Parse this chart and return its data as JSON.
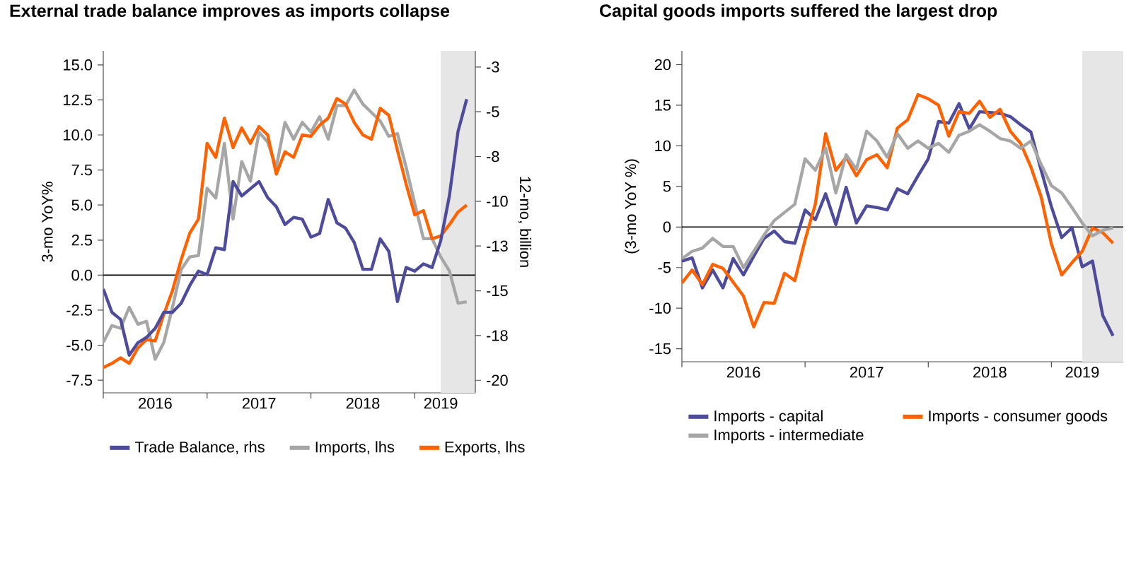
{
  "chart_data": [
    {
      "type": "line",
      "title": "External trade balance improves as imports collapse",
      "ylabel": "3-mo YoY%",
      "y2label": "12-mo, billion",
      "legend": "bottom",
      "x": [
        "2016-01",
        "2016-02",
        "2016-03",
        "2016-04",
        "2016-05",
        "2016-06",
        "2016-07",
        "2016-08",
        "2016-09",
        "2016-10",
        "2016-11",
        "2016-12",
        "2017-01",
        "2017-02",
        "2017-03",
        "2017-04",
        "2017-05",
        "2017-06",
        "2017-07",
        "2017-08",
        "2017-09",
        "2017-10",
        "2017-11",
        "2017-12",
        "2018-01",
        "2018-02",
        "2018-03",
        "2018-04",
        "2018-05",
        "2018-06",
        "2018-07",
        "2018-08",
        "2018-09",
        "2018-10",
        "2018-11",
        "2018-12",
        "2019-01",
        "2019-02",
        "2019-03",
        "2019-04",
        "2019-05",
        "2019-06",
        "2019-07"
      ],
      "series": [
        {
          "name": "Trade Balance, rhs",
          "color": "#4e4b9b",
          "axis": "y2",
          "values": [
            -14.9,
            -16.2,
            -16.6,
            -18.6,
            -17.9,
            -17.6,
            -17.1,
            -16.2,
            -16.2,
            -15.7,
            -14.7,
            -13.9,
            -14.1,
            -12.6,
            -12.7,
            -8.9,
            -9.7,
            -9.3,
            -8.9,
            -9.8,
            -10.3,
            -11.3,
            -10.9,
            -11.0,
            -12.0,
            -11.8,
            -9.9,
            -11.2,
            -11.5,
            -12.3,
            -13.8,
            -13.8,
            -12.1,
            -12.8,
            -15.6,
            -13.7,
            -13.9,
            -13.5,
            -13.7,
            -12.2,
            -9.7,
            -6.1,
            -4.3
          ]
        },
        {
          "name": "Imports, lhs",
          "color": "#a6a6a6",
          "values": [
            -4.8,
            -3.6,
            -3.8,
            -2.3,
            -3.5,
            -3.3,
            -6.0,
            -4.8,
            -2.3,
            0.4,
            1.3,
            1.4,
            6.2,
            5.5,
            9.4,
            4.0,
            8.1,
            6.7,
            10.2,
            9.5,
            7.7,
            10.9,
            9.7,
            10.9,
            10.2,
            11.3,
            9.7,
            12.1,
            12.1,
            13.2,
            12.2,
            11.6,
            11.0,
            9.9,
            10.1,
            7.7,
            5.1,
            2.6,
            2.6,
            1.3,
            0.3,
            -2.0,
            -1.9
          ]
        },
        {
          "name": "Exports, lhs",
          "color": "#ff6200",
          "values": [
            -6.6,
            -6.3,
            -5.9,
            -6.3,
            -5.2,
            -4.6,
            -4.7,
            -2.8,
            -1.1,
            1.1,
            3.0,
            4.0,
            9.4,
            8.4,
            11.2,
            9.1,
            10.5,
            9.4,
            10.6,
            10.0,
            7.2,
            8.8,
            8.4,
            10.0,
            9.9,
            10.7,
            11.2,
            12.6,
            12.2,
            10.9,
            10.0,
            9.7,
            11.9,
            11.4,
            8.9,
            6.5,
            4.3,
            4.6,
            2.6,
            2.8,
            3.6,
            4.5,
            5.0
          ]
        }
      ],
      "xlim": [
        "2016-01",
        "2019-08"
      ],
      "xticks": [
        {
          "value": "2016-01",
          "label": null
        },
        {
          "value": "2016-07",
          "label": "2016"
        },
        {
          "value": "2017-01",
          "label": null
        },
        {
          "value": "2017-07",
          "label": "2017"
        },
        {
          "value": "2018-01",
          "label": null
        },
        {
          "value": "2018-07",
          "label": "2018"
        },
        {
          "value": "2019-01",
          "label": null
        },
        {
          "value": "2019-04",
          "label": "2019"
        }
      ],
      "ylim": [
        -8.4,
        16
      ],
      "yticks": [
        {
          "value": 15,
          "label": "15.0"
        },
        12.5,
        {
          "value": 10,
          "label": "10.0"
        },
        7.5,
        {
          "value": 5,
          "label": "5.0"
        },
        2.5,
        {
          "value": 0,
          "label": "0.0"
        },
        -2.5,
        {
          "value": -5,
          "label": "-5.0"
        },
        -7.5
      ],
      "y2lim": [
        -20.7,
        -1.6
      ],
      "y2ticks": [
        {
          "value": -2.5,
          "label": "-3"
        },
        -5,
        {
          "value": -7.5,
          "label": "-8"
        },
        -10,
        {
          "value": -12.5,
          "label": "-13"
        },
        -15,
        {
          "value": -17.5,
          "label": "-18"
        },
        -20
      ],
      "ref_lines": [
        {
          "axis": "y",
          "value": 0,
          "color": "#000000"
        }
      ],
      "bands": [
        {
          "axis": "x",
          "from": "2019-04",
          "to": "2019-08",
          "color": "#e6e6e6"
        }
      ]
    },
    {
      "type": "line",
      "title": "Capital goods imports suffered the largest drop",
      "ylabel": "(3-mo YoY %)",
      "legend": "bottom",
      "x": [
        "2016-01",
        "2016-02",
        "2016-03",
        "2016-04",
        "2016-05",
        "2016-06",
        "2016-07",
        "2016-08",
        "2016-09",
        "2016-10",
        "2016-11",
        "2016-12",
        "2017-01",
        "2017-02",
        "2017-03",
        "2017-04",
        "2017-05",
        "2017-06",
        "2017-07",
        "2017-08",
        "2017-09",
        "2017-10",
        "2017-11",
        "2017-12",
        "2018-01",
        "2018-02",
        "2018-03",
        "2018-04",
        "2018-05",
        "2018-06",
        "2018-07",
        "2018-08",
        "2018-09",
        "2018-10",
        "2018-11",
        "2018-12",
        "2019-01",
        "2019-02",
        "2019-03",
        "2019-04",
        "2019-05",
        "2019-06",
        "2019-07"
      ],
      "series": [
        {
          "name": "Imports - capital",
          "color": "#4e4b9b",
          "values": [
            -4.2,
            -3.8,
            -7.5,
            -5.3,
            -7.5,
            -3.9,
            -5.9,
            -3.6,
            -1.4,
            -0.5,
            -1.8,
            -2.0,
            2.1,
            0.9,
            4.1,
            0.3,
            4.9,
            0.5,
            2.6,
            2.4,
            2.1,
            4.7,
            4.1,
            6.3,
            8.4,
            13.0,
            12.8,
            15.2,
            12.1,
            14.2,
            14.1,
            14.0,
            13.6,
            12.6,
            11.7,
            7.0,
            2.5,
            -1.3,
            -0.1,
            -4.9,
            -4.2,
            -10.9,
            -13.4
          ]
        },
        {
          "name": "Imports - consumer goods",
          "color": "#ff6200",
          "values": [
            -6.9,
            -5.3,
            -7.1,
            -4.6,
            -5.1,
            -6.8,
            -8.5,
            -12.3,
            -9.3,
            -9.4,
            -5.7,
            -6.6,
            -1.6,
            2.8,
            11.5,
            7.0,
            8.6,
            6.3,
            8.3,
            8.9,
            7.3,
            12.2,
            13.2,
            16.3,
            15.8,
            15.0,
            11.2,
            14.2,
            14.0,
            15.5,
            13.5,
            14.5,
            11.8,
            10.3,
            7.4,
            3.7,
            -2.1,
            -5.9,
            -4.4,
            -3.0,
            -0.1,
            -0.7,
            -2.0
          ]
        },
        {
          "name": "Imports - intermediate",
          "color": "#a6a6a6",
          "values": [
            -3.9,
            -3.0,
            -2.6,
            -1.4,
            -2.4,
            -2.4,
            -5.0,
            -3.0,
            -1.0,
            0.8,
            1.8,
            2.8,
            8.4,
            7.0,
            9.7,
            4.2,
            8.9,
            7.1,
            11.8,
            10.6,
            8.6,
            11.5,
            9.7,
            10.6,
            9.7,
            10.3,
            9.2,
            11.3,
            11.8,
            12.6,
            11.8,
            10.9,
            10.6,
            9.7,
            10.6,
            7.7,
            5.1,
            4.2,
            2.4,
            0.5,
            -1.1,
            -0.4,
            -0.1
          ]
        }
      ],
      "xlim": [
        "2016-01",
        "2019-08"
      ],
      "xticks": [
        {
          "value": "2016-01",
          "label": null
        },
        {
          "value": "2016-07",
          "label": "2016"
        },
        {
          "value": "2017-01",
          "label": null
        },
        {
          "value": "2017-07",
          "label": "2017"
        },
        {
          "value": "2018-01",
          "label": null
        },
        {
          "value": "2018-07",
          "label": "2018"
        },
        {
          "value": "2019-01",
          "label": null
        },
        {
          "value": "2019-04",
          "label": "2019"
        }
      ],
      "ylim": [
        -16.6,
        21.7
      ],
      "yticks": [
        20,
        15,
        10,
        5,
        0,
        -5,
        -10,
        -15
      ],
      "ref_lines": [
        {
          "axis": "y",
          "value": 0,
          "color": "#000000"
        }
      ],
      "bands": [
        {
          "axis": "x",
          "from": "2019-04",
          "to": "2019-08",
          "color": "#e6e6e6"
        }
      ]
    }
  ]
}
